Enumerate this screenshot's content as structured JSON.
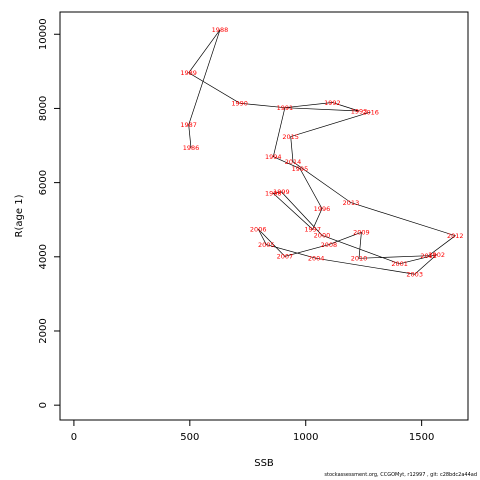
{
  "chart_data": {
    "type": "line",
    "xlabel": "SSB",
    "ylabel": "R(age 1)",
    "xlim": [
      -60,
      1700
    ],
    "ylim": [
      -400,
      10600
    ],
    "xticks": [
      0,
      500,
      1000,
      1500
    ],
    "yticks": [
      0,
      2000,
      4000,
      6000,
      8000,
      10000
    ],
    "points": [
      {
        "label": "1986",
        "x": 505,
        "y": 6940
      },
      {
        "label": "1987",
        "x": 495,
        "y": 7560
      },
      {
        "label": "1988",
        "x": 630,
        "y": 10120
      },
      {
        "label": "1989",
        "x": 495,
        "y": 8960
      },
      {
        "label": "1990",
        "x": 715,
        "y": 8140
      },
      {
        "label": "1991",
        "x": 910,
        "y": 8020
      },
      {
        "label": "1992",
        "x": 1115,
        "y": 8160
      },
      {
        "label": "1993",
        "x": 1230,
        "y": 7930
      },
      {
        "label": "1994",
        "x": 860,
        "y": 6700
      },
      {
        "label": "1995",
        "x": 975,
        "y": 6380
      },
      {
        "label": "1996",
        "x": 1070,
        "y": 5300
      },
      {
        "label": "1997",
        "x": 1030,
        "y": 4740
      },
      {
        "label": "1998",
        "x": 860,
        "y": 5710
      },
      {
        "label": "1999",
        "x": 895,
        "y": 5750
      },
      {
        "label": "2000",
        "x": 1070,
        "y": 4580
      },
      {
        "label": "2001",
        "x": 1405,
        "y": 3810
      },
      {
        "label": "2002",
        "x": 1565,
        "y": 4060
      },
      {
        "label": "2003",
        "x": 1470,
        "y": 3530
      },
      {
        "label": "2004",
        "x": 1045,
        "y": 3960
      },
      {
        "label": "2005",
        "x": 830,
        "y": 4330
      },
      {
        "label": "2006",
        "x": 795,
        "y": 4750
      },
      {
        "label": "2007",
        "x": 910,
        "y": 4010
      },
      {
        "label": "2008",
        "x": 1100,
        "y": 4330
      },
      {
        "label": "2009",
        "x": 1240,
        "y": 4660
      },
      {
        "label": "2010",
        "x": 1230,
        "y": 3960
      },
      {
        "label": "2011",
        "x": 1530,
        "y": 4030
      },
      {
        "label": "2012",
        "x": 1645,
        "y": 4570
      },
      {
        "label": "2013",
        "x": 1195,
        "y": 5460
      },
      {
        "label": "2014",
        "x": 945,
        "y": 6560
      },
      {
        "label": "2015",
        "x": 935,
        "y": 7240
      },
      {
        "label": "2016",
        "x": 1280,
        "y": 7900
      }
    ],
    "path_order": [
      "1986",
      "1987",
      "1988",
      "1989",
      "1990",
      "1991",
      "1992",
      "1993",
      "1991",
      "1994",
      "1995",
      "1996",
      "1997",
      "1998",
      "1999",
      "2000",
      "2001",
      "2002",
      "2003",
      "2004",
      "2005",
      "2006",
      "2007",
      "2008",
      "2009",
      "2010",
      "2011",
      "2012",
      "2013",
      "2014",
      "2015",
      "2016"
    ],
    "line_color": "#000000",
    "label_color": "#ff0000",
    "grid": false
  },
  "footer": "stockassessment.org, CCGOMyt, r12997 , git: c28bdc2a44ad"
}
